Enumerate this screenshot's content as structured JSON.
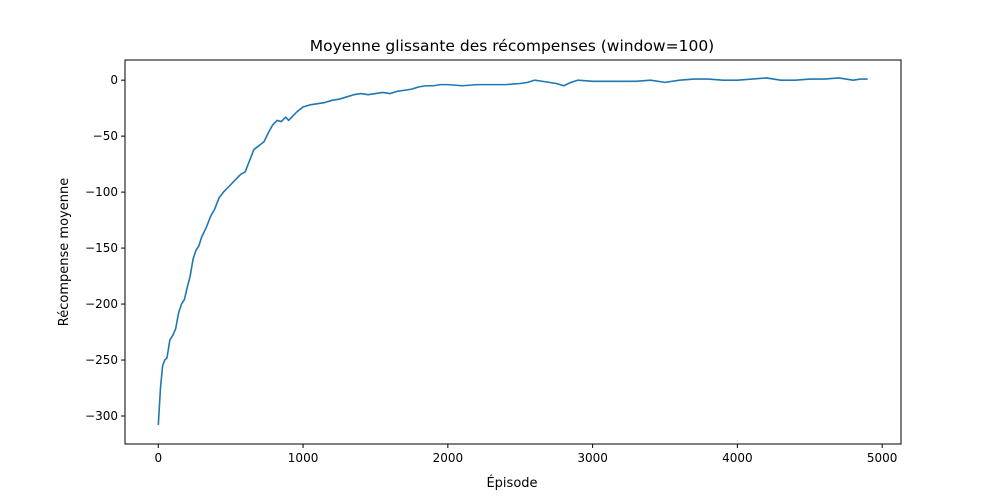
{
  "chart_data": {
    "type": "line",
    "title": "Moyenne glissante des récompenses (window=100)",
    "xlabel": "Épisode",
    "ylabel": "Récompense moyenne",
    "xlim": [
      -230,
      5130
    ],
    "ylim": [
      -325,
      18
    ],
    "xticks": [
      0,
      1000,
      2000,
      3000,
      4000,
      5000
    ],
    "yticks": [
      0,
      -50,
      -100,
      -150,
      -200,
      -250,
      -300
    ],
    "xtick_labels": [
      "0",
      "1000",
      "2000",
      "3000",
      "4000",
      "5000"
    ],
    "ytick_labels": [
      "0",
      "−50",
      "−100",
      "−150",
      "−200",
      "−250",
      "−300"
    ],
    "grid": false,
    "legend": false,
    "colors": {
      "line": "#1f77b4",
      "axes": "#000000",
      "background": "#ffffff"
    },
    "series": [
      {
        "x": [
          0,
          15,
          30,
          45,
          60,
          80,
          100,
          120,
          140,
          160,
          180,
          200,
          220,
          240,
          260,
          280,
          300,
          330,
          360,
          390,
          420,
          450,
          480,
          510,
          540,
          570,
          600,
          630,
          660,
          700,
          730,
          760,
          790,
          820,
          850,
          880,
          900,
          930,
          960,
          1000,
          1050,
          1100,
          1150,
          1200,
          1250,
          1300,
          1350,
          1400,
          1450,
          1500,
          1550,
          1600,
          1650,
          1700,
          1750,
          1800,
          1850,
          1900,
          1950,
          2000,
          2100,
          2200,
          2300,
          2400,
          2500,
          2550,
          2600,
          2650,
          2700,
          2750,
          2800,
          2850,
          2900,
          3000,
          3100,
          3200,
          3300,
          3400,
          3500,
          3600,
          3700,
          3800,
          3900,
          4000,
          4100,
          4200,
          4250,
          4300,
          4400,
          4500,
          4600,
          4700,
          4750,
          4800,
          4850,
          4900
        ],
        "values": [
          -308,
          -275,
          -255,
          -250,
          -248,
          -232,
          -228,
          -222,
          -208,
          -200,
          -196,
          -185,
          -175,
          -160,
          -152,
          -148,
          -140,
          -132,
          -122,
          -115,
          -105,
          -100,
          -96,
          -92,
          -88,
          -84,
          -82,
          -72,
          -62,
          -58,
          -55,
          -47,
          -40,
          -36,
          -37,
          -33,
          -36,
          -32,
          -28,
          -24,
          -22,
          -21,
          -20,
          -18,
          -17,
          -15,
          -13,
          -12,
          -13,
          -12,
          -11,
          -12,
          -10,
          -9,
          -8,
          -6,
          -5,
          -5,
          -4,
          -4,
          -5,
          -4,
          -4,
          -4,
          -3,
          -2,
          0,
          -1,
          -2,
          -3,
          -5,
          -2,
          0,
          -1,
          -1,
          -1,
          -1,
          0,
          -2,
          0,
          1,
          1,
          0,
          0,
          1,
          2,
          1,
          0,
          0,
          1,
          1,
          2,
          1,
          0,
          1,
          1
        ]
      }
    ]
  }
}
